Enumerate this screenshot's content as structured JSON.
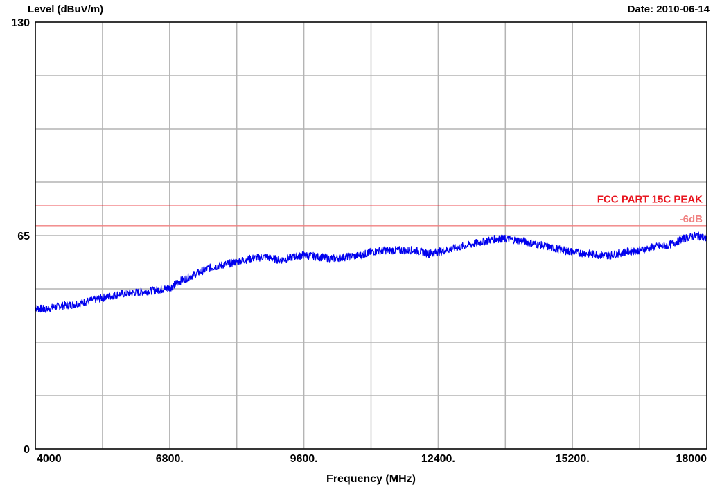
{
  "header": {
    "ylabel": "Level (dBuV/m)",
    "date": "Date: 2010-06-14"
  },
  "chart_data": {
    "type": "line",
    "title": "",
    "xlabel": "Frequency (MHz)",
    "ylabel": "Level (dBuV/m)",
    "xlim": [
      4000,
      18000
    ],
    "ylim": [
      0,
      130
    ],
    "grid": true,
    "x_tick_labels": [
      {
        "value": 4000,
        "label": "4000"
      },
      {
        "value": 6800,
        "label": "6800."
      },
      {
        "value": 9600,
        "label": "9600."
      },
      {
        "value": 12400,
        "label": "12400."
      },
      {
        "value": 15200,
        "label": "15200."
      },
      {
        "value": 18000,
        "label": "18000"
      }
    ],
    "x_grid_values": [
      4000,
      5400,
      6800,
      8200,
      9600,
      11000,
      12400,
      13800,
      15200,
      16600,
      18000
    ],
    "y_tick_labels": [
      {
        "value": 130,
        "label": "130"
      },
      {
        "value": 65,
        "label": "65"
      },
      {
        "value": 0,
        "label": "0"
      }
    ],
    "y_grid_step": 16.25,
    "limit_lines": [
      {
        "name": "FCC PART 15C  PEAK",
        "value": 74,
        "color": "#e8141e"
      },
      {
        "name": "-6dB",
        "value": 68,
        "color": "#f08080"
      }
    ],
    "series": [
      {
        "color": "#0000ee",
        "x": [
          4000,
          4200,
          4500,
          4800,
          5100,
          5400,
          5700,
          6000,
          6300,
          6600,
          6800,
          7000,
          7300,
          7600,
          7900,
          8200,
          8500,
          8800,
          9100,
          9400,
          9600,
          9900,
          10200,
          10500,
          10800,
          11000,
          11300,
          11600,
          11900,
          12200,
          12400,
          12700,
          13000,
          13300,
          13600,
          13800,
          14100,
          14400,
          14700,
          15000,
          15200,
          15500,
          15800,
          16000,
          16300,
          16600,
          16900,
          17200,
          17500,
          17800,
          18000
        ],
        "y": [
          43,
          42.5,
          43.5,
          44,
          45,
          46,
          47,
          47.5,
          48,
          48.5,
          49,
          51,
          53,
          55,
          56,
          57,
          58,
          58.5,
          57.5,
          58.5,
          59,
          58.5,
          58,
          58.5,
          59,
          60,
          60.5,
          60.5,
          60.5,
          59.5,
          60,
          61,
          62,
          63,
          64,
          64,
          63.5,
          62.5,
          61.5,
          60.5,
          60,
          59.5,
          59,
          59,
          60,
          60.5,
          61.5,
          62,
          64,
          65,
          64
        ]
      }
    ]
  }
}
